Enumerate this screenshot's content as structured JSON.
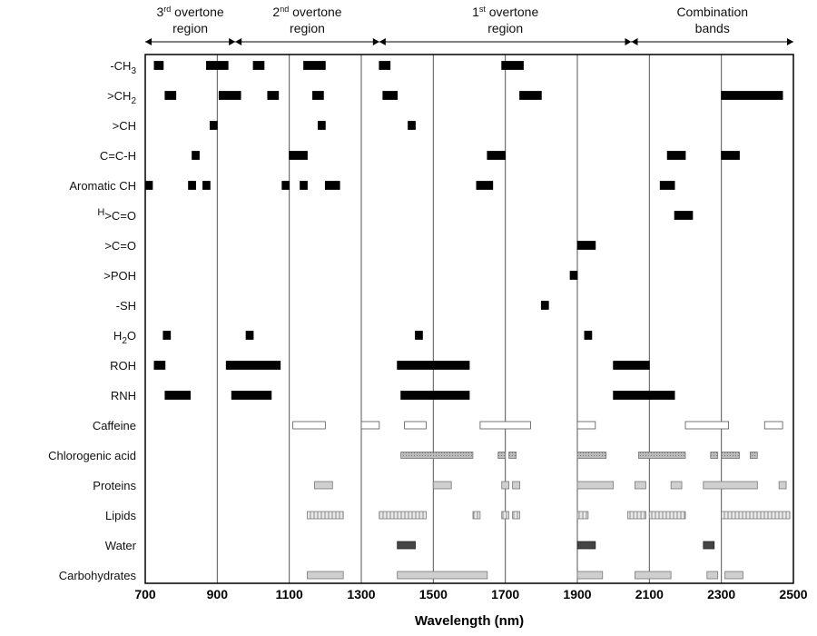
{
  "chart_data": {
    "type": "bar",
    "title": "",
    "xlabel": "Wavelength (nm)",
    "ylabel": "",
    "xlim": [
      700,
      2500
    ],
    "xticks": [
      700,
      900,
      1100,
      1300,
      1500,
      1700,
      1900,
      2100,
      2300,
      2500
    ],
    "grid_x": [
      900,
      1100,
      1300,
      1500,
      1700,
      1900,
      2100,
      2300
    ],
    "regions": [
      {
        "name": "3rd overtone region",
        "line1": "3",
        "sup": "rd",
        "line1_rest": " overtone",
        "line2": "region",
        "range": [
          700,
          950
        ]
      },
      {
        "name": "2nd overtone region",
        "line1": "2",
        "sup": "nd",
        "line1_rest": " overtone",
        "line2": "region",
        "range": [
          950,
          1350
        ]
      },
      {
        "name": "1st overtone region",
        "line1": "1",
        "sup": "st",
        "line1_rest": " overtone",
        "line2": "region",
        "range": [
          1350,
          2050
        ]
      },
      {
        "name": "Combination bands",
        "line1": "",
        "sup": "",
        "line1_rest": "Combination",
        "line2": "bands",
        "range": [
          2050,
          2500
        ]
      }
    ],
    "categories": [
      {
        "label": "-CH3",
        "label_html": [
          "-CH",
          "3"
        ],
        "style": "black",
        "bands": [
          [
            725,
            750
          ],
          [
            870,
            930
          ],
          [
            1000,
            1030
          ],
          [
            1140,
            1200
          ],
          [
            1350,
            1380
          ],
          [
            1690,
            1750
          ]
        ]
      },
      {
        "label": ">CH2",
        "label_html": [
          ">CH",
          "2"
        ],
        "style": "black",
        "bands": [
          [
            755,
            785
          ],
          [
            905,
            965
          ],
          [
            1040,
            1070
          ],
          [
            1165,
            1195
          ],
          [
            1360,
            1400
          ],
          [
            1740,
            1800
          ],
          [
            2300,
            2470
          ]
        ]
      },
      {
        "label": ">CH",
        "label_html": [
          ">CH",
          ""
        ],
        "style": "black",
        "bands": [
          [
            880,
            900
          ],
          [
            1180,
            1200
          ],
          [
            1430,
            1450
          ]
        ]
      },
      {
        "label": "C=C-H",
        "label_html": [
          "C=C-H",
          ""
        ],
        "style": "black",
        "bands": [
          [
            830,
            850
          ],
          [
            1100,
            1150
          ],
          [
            1650,
            1700
          ],
          [
            2150,
            2200
          ],
          [
            2300,
            2350
          ]
        ]
      },
      {
        "label": "Aromatic CH",
        "label_html": [
          "Aromatic CH",
          ""
        ],
        "style": "black",
        "bands": [
          [
            700,
            720
          ],
          [
            820,
            840
          ],
          [
            860,
            880
          ],
          [
            1080,
            1100
          ],
          [
            1130,
            1150
          ],
          [
            1200,
            1240
          ],
          [
            1620,
            1665
          ],
          [
            2130,
            2170
          ]
        ]
      },
      {
        "label": "H>C=O",
        "label_html": [
          "H>C=O",
          ""
        ],
        "style": "black",
        "bands": [
          [
            2170,
            2220
          ]
        ]
      },
      {
        "label": ">C=O",
        "label_html": [
          ">C=O",
          ""
        ],
        "style": "black",
        "bands": [
          [
            1900,
            1950
          ]
        ]
      },
      {
        "label": ">POH",
        "label_html": [
          ">POH",
          ""
        ],
        "style": "black",
        "bands": [
          [
            1880,
            1900
          ]
        ]
      },
      {
        "label": "-SH",
        "label_html": [
          "-SH",
          ""
        ],
        "style": "black",
        "bands": [
          [
            1800,
            1820
          ]
        ]
      },
      {
        "label": "H2O",
        "label_html": [
          "H",
          "2",
          "O"
        ],
        "style": "black",
        "bands": [
          [
            750,
            770
          ],
          [
            980,
            1000
          ],
          [
            1450,
            1470
          ],
          [
            1920,
            1940
          ]
        ]
      },
      {
        "label": "ROH",
        "label_html": [
          "ROH",
          ""
        ],
        "style": "black",
        "bands": [
          [
            725,
            755
          ],
          [
            925,
            1075
          ],
          [
            1400,
            1600
          ],
          [
            2000,
            2100
          ]
        ]
      },
      {
        "label": "RNH",
        "label_html": [
          "RNH",
          ""
        ],
        "style": "black",
        "bands": [
          [
            755,
            825
          ],
          [
            940,
            1050
          ],
          [
            1410,
            1600
          ],
          [
            2000,
            2170
          ]
        ]
      },
      {
        "label": "Caffeine",
        "label_html": [
          "Caffeine",
          ""
        ],
        "style": "white",
        "bands": [
          [
            1110,
            1200
          ],
          [
            1300,
            1350
          ],
          [
            1420,
            1480
          ],
          [
            1630,
            1770
          ],
          [
            1900,
            1950
          ],
          [
            2200,
            2320
          ],
          [
            2420,
            2470
          ]
        ]
      },
      {
        "label": "Chlorogenic acid",
        "label_html": [
          "Chlorogenic acid",
          ""
        ],
        "style": "dots",
        "bands": [
          [
            1410,
            1610
          ],
          [
            1680,
            1700
          ],
          [
            1710,
            1730
          ],
          [
            1900,
            1980
          ],
          [
            2070,
            2200
          ],
          [
            2270,
            2290
          ],
          [
            2300,
            2350
          ],
          [
            2380,
            2400
          ]
        ]
      },
      {
        "label": "Proteins",
        "label_html": [
          "Proteins",
          ""
        ],
        "style": "light",
        "bands": [
          [
            1170,
            1220
          ],
          [
            1500,
            1550
          ],
          [
            1690,
            1710
          ],
          [
            1720,
            1740
          ],
          [
            1900,
            2000
          ],
          [
            2060,
            2090
          ],
          [
            2160,
            2190
          ],
          [
            2250,
            2400
          ],
          [
            2460,
            2480
          ]
        ]
      },
      {
        "label": "Lipids",
        "label_html": [
          "Lipids",
          ""
        ],
        "style": "hatch",
        "bands": [
          [
            1150,
            1250
          ],
          [
            1350,
            1480
          ],
          [
            1610,
            1630
          ],
          [
            1690,
            1710
          ],
          [
            1720,
            1740
          ],
          [
            1900,
            1930
          ],
          [
            2040,
            2090
          ],
          [
            2100,
            2200
          ],
          [
            2300,
            2490
          ]
        ]
      },
      {
        "label": "Water",
        "label_html": [
          "Water",
          ""
        ],
        "style": "dark",
        "bands": [
          [
            1400,
            1450
          ],
          [
            1900,
            1950
          ],
          [
            2250,
            2280
          ]
        ]
      },
      {
        "label": "Carbohydrates",
        "label_html": [
          "Carbohydrates",
          ""
        ],
        "style": "light",
        "bands": [
          [
            1150,
            1250
          ],
          [
            1400,
            1650
          ],
          [
            1900,
            1970
          ],
          [
            2060,
            2160
          ],
          [
            2260,
            2290
          ],
          [
            2310,
            2360
          ]
        ]
      }
    ]
  }
}
